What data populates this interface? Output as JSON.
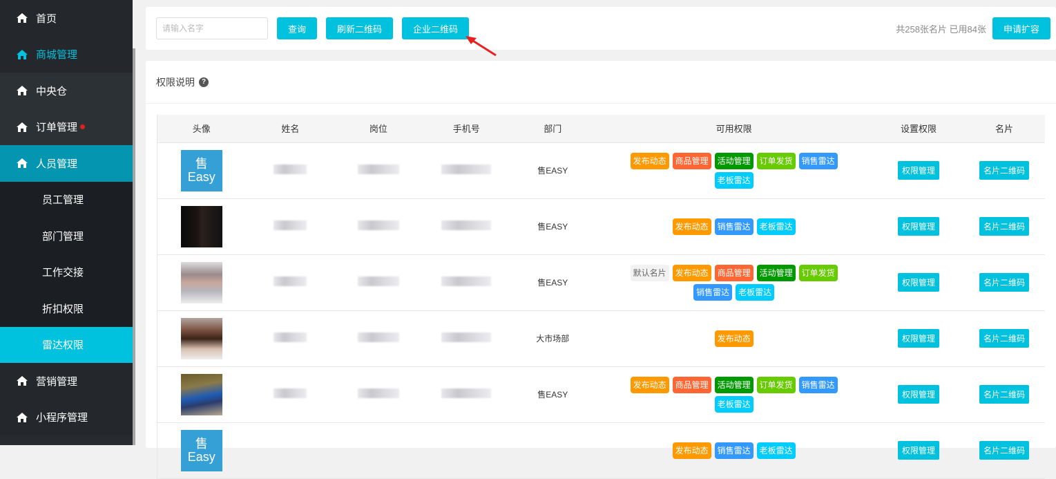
{
  "sidebar": {
    "items": [
      {
        "label": "首页",
        "icon": "home-icon"
      },
      {
        "label": "商城管理",
        "icon": "home-icon"
      },
      {
        "label": "中央仓",
        "icon": "home-icon"
      },
      {
        "label": "订单管理",
        "icon": "home-icon",
        "badge": true
      },
      {
        "label": "人员管理",
        "icon": "home-icon",
        "expanded": true,
        "children": [
          "员工管理",
          "部门管理",
          "工作交接",
          "折扣权限",
          "雷达权限"
        ],
        "active_child": "雷达权限"
      },
      {
        "label": "营销管理",
        "icon": "home-icon"
      },
      {
        "label": "小程序管理",
        "icon": "home-icon"
      }
    ],
    "sub": [
      "员工管理",
      "部门管理",
      "工作交接",
      "折扣权限",
      "雷达权限"
    ]
  },
  "toolbar": {
    "search_placeholder": "请输入名字",
    "query": "查询",
    "refresh_qr": "刷新二维码",
    "company_qr": "企业二维码",
    "quota": "共258张名片 已用84张",
    "apply": "申请扩容"
  },
  "panel": {
    "title": "权限说明"
  },
  "table": {
    "headers": [
      "头像",
      "姓名",
      "岗位",
      "手机号",
      "部门",
      "可用权限",
      "设置权限",
      "名片"
    ],
    "rows": [
      {
        "avatar": "logo",
        "dept": "售EASY",
        "perms": [
          "发布动态",
          "商品管理",
          "活动管理",
          "订单发货",
          "销售雷达",
          "老板雷达"
        ]
      },
      {
        "avatar": "photo-dark",
        "dept": "售EASY",
        "perms": [
          "发布动态",
          "销售雷达",
          "老板雷达"
        ]
      },
      {
        "avatar": "photo-gray",
        "dept": "售EASY",
        "perms": [
          "默认名片",
          "发布动态",
          "商品管理",
          "活动管理",
          "订单发货",
          "销售雷达",
          "老板雷达"
        ]
      },
      {
        "avatar": "photo-face",
        "dept": "大市场部",
        "perms": [
          "发布动态"
        ]
      },
      {
        "avatar": "photo-car",
        "dept": "售EASY",
        "perms": [
          "发布动态",
          "商品管理",
          "活动管理",
          "订单发货",
          "销售雷达",
          "老板雷达"
        ]
      },
      {
        "avatar": "logo",
        "dept": "",
        "perms": [
          "发布动态",
          "销售雷达",
          "老板雷达"
        ]
      }
    ],
    "set_perm": "权限管理",
    "card_qr": "名片二维码"
  },
  "logo_text": {
    "top": "售",
    "bottom": "Easy"
  },
  "colors": {
    "accent": "#00c1de",
    "发布动态": "#ff9900",
    "商品管理": "#ff6633",
    "活动管理": "#009900",
    "订单发货": "#66cc00",
    "销售雷达": "#3399ff",
    "老板雷达": "#00ccff",
    "默认名片": "#f2f2f2"
  }
}
